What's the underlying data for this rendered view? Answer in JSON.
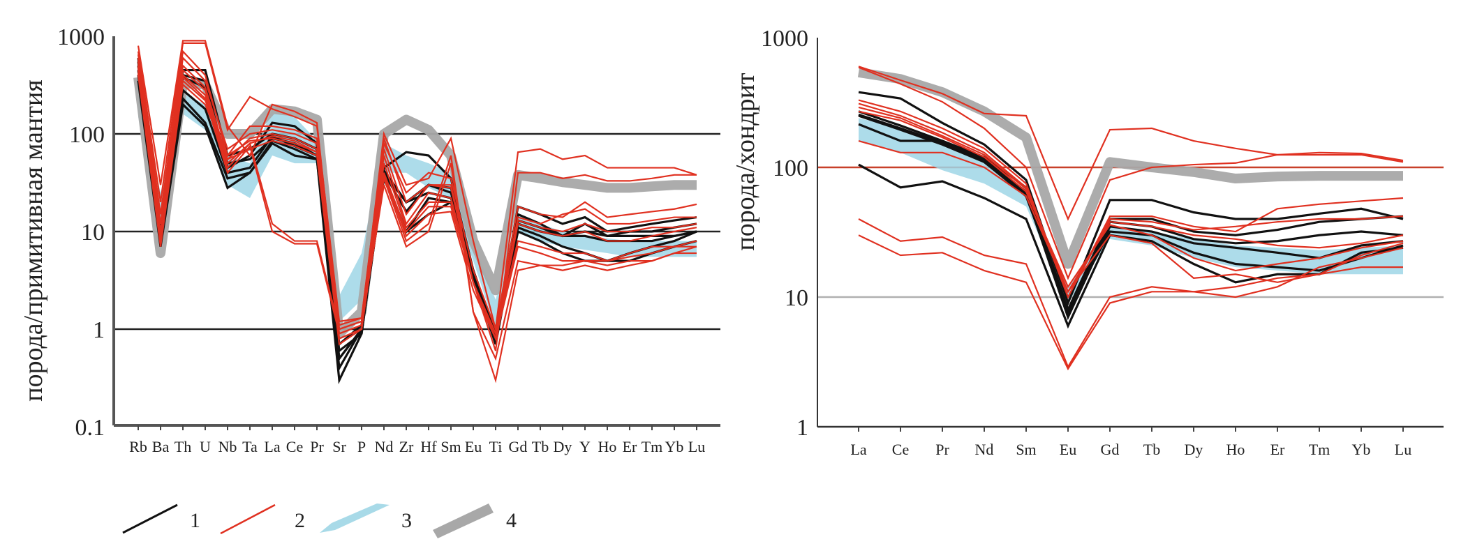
{
  "chart_data": [
    {
      "id": "left",
      "type": "line",
      "title": "",
      "ylabel": "порода/примитивная мантия",
      "xlabel": "",
      "yscale": "log",
      "ylim": [
        0.1,
        1000
      ],
      "yticks": [
        0.1,
        1,
        10,
        100,
        1000
      ],
      "ytick_labels": [
        "0.1",
        "1",
        "10",
        "100",
        "1000"
      ],
      "grid_lines": [
        {
          "value": 1,
          "color": "#222222"
        },
        {
          "value": 10,
          "color": "#222222"
        },
        {
          "value": 100,
          "color": "#222222"
        }
      ],
      "categories": [
        "Rb",
        "Ba",
        "Th",
        "U",
        "Nb",
        "Ta",
        "La",
        "Ce",
        "Pr",
        "Sr",
        "P",
        "Nd",
        "Zr",
        "Hf",
        "Sm",
        "Eu",
        "Ti",
        "Gd",
        "Tb",
        "Dy",
        "Y",
        "Ho",
        "Er",
        "Tm",
        "Yb",
        "Lu"
      ],
      "bands": [
        {
          "legend": "3",
          "color": "#9fd6e6",
          "lower": [
            150,
            14,
            160,
            110,
            30,
            22,
            60,
            50,
            50,
            1.2,
            2.0,
            40,
            40,
            28,
            22,
            5,
            1.0,
            10,
            8,
            7,
            6.5,
            6,
            5.5,
            5.5,
            5.5,
            5.5
          ],
          "upper": [
            300,
            25,
            260,
            200,
            60,
            50,
            180,
            150,
            85,
            2.2,
            6.0,
            80,
            60,
            50,
            40,
            8,
            2.0,
            15,
            12,
            10,
            9,
            8.5,
            8,
            8,
            8,
            8
          ]
        },
        {
          "legend": "4",
          "color": "#a8a8a8",
          "values": [
            380,
            6,
            330,
            320,
            100,
            100,
            180,
            170,
            140,
            0.9,
            1.5,
            100,
            140,
            110,
            60,
            8,
            2.5,
            38,
            35,
            32,
            30,
            28,
            28,
            29,
            30,
            30
          ]
        }
      ],
      "series": [
        {
          "legend": "1",
          "color": "#111111",
          "values": [
            550,
            8,
            450,
            450,
            60,
            70,
            100,
            90,
            70,
            0.4,
            1.0,
            45,
            65,
            60,
            35,
            4,
            0.9,
            18,
            15,
            12,
            14,
            10,
            11,
            12,
            13,
            14
          ]
        },
        {
          "legend": "1",
          "color": "#111111",
          "values": [
            500,
            10,
            400,
            350,
            45,
            60,
            130,
            120,
            80,
            0.5,
            1.0,
            40,
            20,
            30,
            25,
            4,
            0.8,
            15,
            12,
            9,
            12,
            9,
            10,
            10,
            11,
            12
          ]
        },
        {
          "legend": "1",
          "color": "#111111",
          "values": [
            400,
            8,
            380,
            300,
            50,
            55,
            90,
            80,
            60,
            0.6,
            0.9,
            38,
            10,
            22,
            20,
            3.5,
            0.8,
            12,
            10,
            9,
            9,
            8,
            8,
            8,
            9,
            10
          ]
        },
        {
          "legend": "1",
          "color": "#111111",
          "values": [
            450,
            9,
            230,
            130,
            35,
            40,
            85,
            70,
            55,
            0.3,
            0.9,
            40,
            16,
            30,
            28,
            3.5,
            0.7,
            11,
            9,
            7,
            6,
            5,
            6,
            7,
            8,
            10
          ]
        },
        {
          "legend": "1",
          "color": "#111111",
          "values": [
            350,
            7,
            200,
            120,
            28,
            40,
            80,
            60,
            55,
            0.5,
            1.0,
            35,
            10,
            15,
            20,
            3.5,
            0.8,
            10,
            8,
            6,
            5,
            5,
            5,
            6,
            7,
            8
          ]
        },
        {
          "legend": "1",
          "color": "#111111",
          "values": [
            600,
            8,
            280,
            180,
            40,
            45,
            95,
            75,
            60,
            0.7,
            1.1,
            42,
            20,
            25,
            22,
            4,
            0.9,
            13,
            11,
            9,
            10,
            9,
            9,
            9,
            9,
            10
          ]
        },
        {
          "legend": "2",
          "color": "#e03020",
          "values": [
            800,
            30,
            900,
            900,
            120,
            60,
            200,
            170,
            130,
            1.0,
            1.2,
            100,
            30,
            35,
            90,
            8,
            1.0,
            65,
            70,
            55,
            60,
            45,
            45,
            45,
            45,
            38
          ]
        },
        {
          "legend": "2",
          "color": "#e03020",
          "values": [
            700,
            20,
            850,
            850,
            110,
            240,
            180,
            150,
            120,
            1.2,
            1.3,
            90,
            20,
            30,
            30,
            3,
            0.6,
            40,
            40,
            35,
            38,
            33,
            33,
            35,
            38,
            38
          ]
        },
        {
          "legend": "2",
          "color": "#e03020",
          "values": [
            650,
            15,
            700,
            400,
            60,
            120,
            120,
            110,
            90,
            1.1,
            1.3,
            80,
            25,
            40,
            35,
            4,
            1.0,
            18,
            15,
            14,
            20,
            14,
            15,
            16,
            17,
            19
          ]
        },
        {
          "legend": "2",
          "color": "#e03020",
          "values": [
            600,
            12,
            600,
            350,
            70,
            100,
            110,
            100,
            80,
            1.0,
            1.2,
            70,
            15,
            30,
            28,
            3,
            0.9,
            14,
            12,
            15,
            17,
            12,
            12,
            13,
            14,
            14
          ]
        },
        {
          "legend": "2",
          "color": "#e03020",
          "values": [
            550,
            10,
            500,
            300,
            55,
            90,
            100,
            90,
            70,
            0.9,
            1.1,
            60,
            12,
            25,
            22,
            3,
            0.8,
            13,
            11,
            10,
            12,
            10,
            10,
            11,
            11,
            12
          ]
        },
        {
          "legend": "2",
          "color": "#e03020",
          "values": [
            500,
            9,
            450,
            280,
            50,
            80,
            95,
            85,
            65,
            0.8,
            1.0,
            50,
            11,
            20,
            20,
            3,
            0.8,
            12,
            10,
            9,
            10,
            8,
            8,
            9,
            10,
            11
          ]
        },
        {
          "legend": "2",
          "color": "#e03020",
          "values": [
            480,
            9,
            400,
            250,
            45,
            80,
            12,
            8,
            8,
            1.0,
            1.2,
            35,
            8,
            12,
            60,
            1.5,
            0.3,
            4,
            4.5,
            4.5,
            5,
            4.5,
            5,
            5,
            6,
            6
          ]
        },
        {
          "legend": "2",
          "color": "#e03020",
          "values": [
            450,
            8,
            380,
            230,
            40,
            75,
            10,
            7.5,
            7.5,
            0.9,
            1.1,
            30,
            7,
            10,
            50,
            1.5,
            0.5,
            5,
            4.5,
            4,
            4.5,
            4,
            4.5,
            5,
            6,
            7
          ]
        },
        {
          "legend": "2",
          "color": "#e03020",
          "values": [
            420,
            8,
            350,
            220,
            60,
            85,
            90,
            80,
            65,
            0.8,
            1.0,
            40,
            10,
            18,
            18,
            3,
            0.9,
            8,
            7,
            6,
            6,
            5,
            6,
            7,
            7,
            8
          ]
        },
        {
          "legend": "2",
          "color": "#e03020",
          "values": [
            400,
            7,
            320,
            200,
            55,
            70,
            85,
            75,
            60,
            0.7,
            1.0,
            38,
            9,
            15,
            16,
            2.5,
            0.8,
            7,
            6,
            5,
            5,
            5,
            5.5,
            6,
            7,
            7
          ]
        }
      ]
    },
    {
      "id": "right",
      "type": "line",
      "title": "",
      "ylabel": "порода/хондрит",
      "xlabel": "",
      "yscale": "log",
      "ylim": [
        1,
        1000
      ],
      "yticks": [
        1,
        10,
        100,
        1000
      ],
      "ytick_labels": [
        "1",
        "10",
        "100",
        "1000"
      ],
      "grid_lines": [
        {
          "value": 10,
          "color": "#b0b0b0"
        },
        {
          "value": 100,
          "color": "#c8402a"
        }
      ],
      "categories": [
        "La",
        "Ce",
        "Pr",
        "Nd",
        "Sm",
        "Eu",
        "Gd",
        "Tb",
        "Dy",
        "Ho",
        "Er",
        "Tm",
        "Yb",
        "Lu"
      ],
      "bands": [
        {
          "legend": "3",
          "color": "#9fd6e6",
          "lower": [
            160,
            130,
            95,
            75,
            50,
            9,
            28,
            25,
            20,
            17,
            16,
            15,
            15,
            15
          ],
          "upper": [
            240,
            200,
            150,
            110,
            65,
            12,
            35,
            32,
            28,
            25,
            24,
            23,
            24,
            25
          ]
        },
        {
          "legend": "4",
          "color": "#a8a8a8",
          "values": [
            540,
            480,
            380,
            270,
            170,
            18,
            110,
            100,
            92,
            82,
            85,
            86,
            86,
            86
          ]
        }
      ],
      "series": [
        {
          "legend": "1",
          "color": "#111111",
          "values": [
            380,
            340,
            220,
            150,
            80,
            9,
            56,
            56,
            45,
            40,
            40,
            44,
            48,
            40
          ]
        },
        {
          "legend": "1",
          "color": "#111111",
          "values": [
            270,
            210,
            160,
            120,
            70,
            8,
            40,
            40,
            32,
            30,
            33,
            38,
            40,
            42
          ]
        },
        {
          "legend": "1",
          "color": "#111111",
          "values": [
            255,
            200,
            155,
            115,
            65,
            7.5,
            38,
            35,
            28,
            26,
            27,
            30,
            32,
            30
          ]
        },
        {
          "legend": "1",
          "color": "#111111",
          "values": [
            250,
            195,
            150,
            110,
            62,
            7,
            35,
            32,
            26,
            24,
            22,
            20,
            25,
            27
          ]
        },
        {
          "legend": "1",
          "color": "#111111",
          "values": [
            215,
            160,
            160,
            110,
            60,
            8,
            32,
            30,
            22,
            18,
            17,
            16,
            20,
            25
          ]
        },
        {
          "legend": "1",
          "color": "#111111",
          "values": [
            105,
            70,
            78,
            58,
            40,
            6,
            30,
            27,
            18,
            13,
            15,
            15,
            22,
            24
          ]
        },
        {
          "legend": "2",
          "color": "#e03020",
          "values": [
            600,
            470,
            370,
            260,
            250,
            40,
            195,
            200,
            160,
            140,
            125,
            125,
            125,
            110
          ]
        },
        {
          "legend": "2",
          "color": "#e03020",
          "values": [
            590,
            440,
            320,
            200,
            100,
            14,
            80,
            100,
            105,
            108,
            125,
            130,
            128,
            113
          ]
        },
        {
          "legend": "2",
          "color": "#e03020",
          "values": [
            330,
            270,
            200,
            140,
            75,
            10,
            42,
            42,
            35,
            32,
            48,
            52,
            55,
            58
          ]
        },
        {
          "legend": "2",
          "color": "#e03020",
          "values": [
            310,
            250,
            185,
            130,
            70,
            10,
            40,
            38,
            33,
            35,
            38,
            40,
            40,
            42
          ]
        },
        {
          "legend": "2",
          "color": "#e03020",
          "values": [
            290,
            240,
            175,
            125,
            68,
            11,
            38,
            35,
            30,
            28,
            25,
            24,
            26,
            30
          ]
        },
        {
          "legend": "2",
          "color": "#e03020",
          "values": [
            270,
            230,
            170,
            120,
            65,
            12,
            36,
            30,
            20,
            16,
            18,
            20,
            24,
            27
          ]
        },
        {
          "legend": "2",
          "color": "#e03020",
          "values": [
            160,
            130,
            130,
            100,
            60,
            11,
            30,
            26,
            14,
            15,
            13,
            15,
            21,
            26
          ]
        },
        {
          "legend": "2",
          "color": "#e03020",
          "values": [
            40,
            27,
            29,
            21,
            18,
            2.9,
            10,
            12,
            11,
            12,
            14,
            15,
            17,
            17
          ]
        },
        {
          "legend": "2",
          "color": "#e03020",
          "values": [
            30,
            21,
            22,
            16,
            13,
            2.8,
            9,
            11,
            11,
            10,
            12,
            17,
            20,
            24
          ]
        }
      ]
    }
  ],
  "legend": [
    {
      "label": "1",
      "kind": "line",
      "color": "#111111"
    },
    {
      "label": "2",
      "kind": "line",
      "color": "#e03020"
    },
    {
      "label": "3",
      "kind": "band",
      "color": "#9fd6e6"
    },
    {
      "label": "4",
      "kind": "band",
      "color": "#a8a8a8"
    }
  ]
}
